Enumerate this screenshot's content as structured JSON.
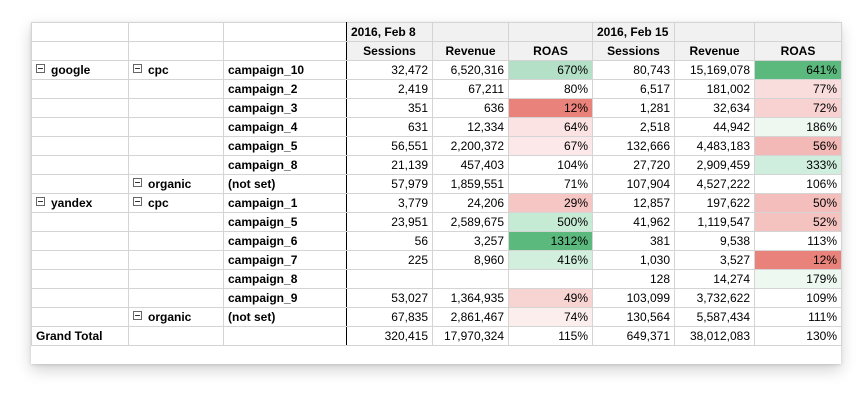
{
  "header": {
    "periods": [
      "2016, Feb 8",
      "2016, Feb 15"
    ],
    "metrics": [
      "Sessions",
      "Revenue",
      "ROAS"
    ]
  },
  "rows": [
    {
      "source": "google",
      "medium": "cpc",
      "campaign": "campaign_10",
      "s1": "32,472",
      "r1": "6,520,316",
      "o1": "670%",
      "s2": "80,743",
      "r2": "15,169,078",
      "o2": "641%",
      "c1": "#b3e0c6",
      "c2": "#5cb97e"
    },
    {
      "source": "",
      "medium": "",
      "campaign": "campaign_2",
      "s1": "2,419",
      "r1": "67,211",
      "o1": "80%",
      "s2": "6,517",
      "r2": "181,002",
      "o2": "77%",
      "c1": "#ffffff",
      "c2": "#f9dcdc"
    },
    {
      "source": "",
      "medium": "",
      "campaign": "campaign_3",
      "s1": "351",
      "r1": "636",
      "o1": "12%",
      "s2": "1,281",
      "r2": "32,634",
      "o2": "72%",
      "c1": "#e9827a",
      "c2": "#f7d2d0"
    },
    {
      "source": "",
      "medium": "",
      "campaign": "campaign_4",
      "s1": "631",
      "r1": "12,334",
      "o1": "64%",
      "s2": "2,518",
      "r2": "44,942",
      "o2": "186%",
      "c1": "#fbe3e3",
      "c2": "#eef8f1"
    },
    {
      "source": "",
      "medium": "",
      "campaign": "campaign_5",
      "s1": "56,551",
      "r1": "2,200,372",
      "o1": "67%",
      "s2": "132,666",
      "r2": "4,483,183",
      "o2": "56%",
      "c1": "#fce8e8",
      "c2": "#f2b9b6"
    },
    {
      "source": "",
      "medium": "",
      "campaign": "campaign_8",
      "s1": "21,139",
      "r1": "457,403",
      "o1": "104%",
      "s2": "27,720",
      "r2": "2,909,459",
      "o2": "333%",
      "c1": "#ffffff",
      "c2": "#cfeedd"
    },
    {
      "source": "",
      "medium": "organic",
      "campaign": "(not set)",
      "s1": "57,979",
      "r1": "1,859,551",
      "o1": "71%",
      "s2": "107,904",
      "r2": "4,527,222",
      "o2": "106%",
      "c1": "#ffffff",
      "c2": "#ffffff"
    },
    {
      "source": "yandex",
      "medium": "cpc",
      "campaign": "campaign_1",
      "s1": "3,779",
      "r1": "24,206",
      "o1": "29%",
      "s2": "12,857",
      "r2": "197,622",
      "o2": "50%",
      "c1": "#f5c6c4",
      "c2": "#f3bebc"
    },
    {
      "source": "",
      "medium": "",
      "campaign": "campaign_5",
      "s1": "23,951",
      "r1": "2,589,675",
      "o1": "500%",
      "s2": "41,962",
      "r2": "1,119,547",
      "o2": "52%",
      "c1": "#c6ebd5",
      "c2": "#f4c3c0"
    },
    {
      "source": "",
      "medium": "",
      "campaign": "campaign_6",
      "s1": "56",
      "r1": "3,257",
      "o1": "1312%",
      "s2": "381",
      "r2": "9,538",
      "o2": "113%",
      "c1": "#5cb97e",
      "c2": "#ffffff"
    },
    {
      "source": "",
      "medium": "",
      "campaign": "campaign_7",
      "s1": "225",
      "r1": "8,960",
      "o1": "416%",
      "s2": "1,030",
      "r2": "3,527",
      "o2": "12%",
      "c1": "#d2efdd",
      "c2": "#e9827a"
    },
    {
      "source": "",
      "medium": "",
      "campaign": "campaign_8",
      "s1": "",
      "r1": "",
      "o1": "",
      "s2": "128",
      "r2": "14,274",
      "o2": "179%",
      "c1": "#ffffff",
      "c2": "#edf8f1"
    },
    {
      "source": "",
      "medium": "",
      "campaign": "campaign_9",
      "s1": "53,027",
      "r1": "1,364,935",
      "o1": "49%",
      "s2": "103,099",
      "r2": "3,732,622",
      "o2": "109%",
      "c1": "#f7d4d2",
      "c2": "#ffffff"
    },
    {
      "source": "",
      "medium": "organic",
      "campaign": "(not set)",
      "s1": "67,835",
      "r1": "2,861,467",
      "o1": "74%",
      "s2": "130,564",
      "r2": "5,587,434",
      "o2": "111%",
      "c1": "#fdeeee",
      "c2": "#ffffff"
    }
  ],
  "grand_total": {
    "label": "Grand Total",
    "s1": "320,415",
    "r1": "17,970,324",
    "o1": "115%",
    "s2": "649,371",
    "r2": "38,012,083",
    "o2": "130%"
  }
}
